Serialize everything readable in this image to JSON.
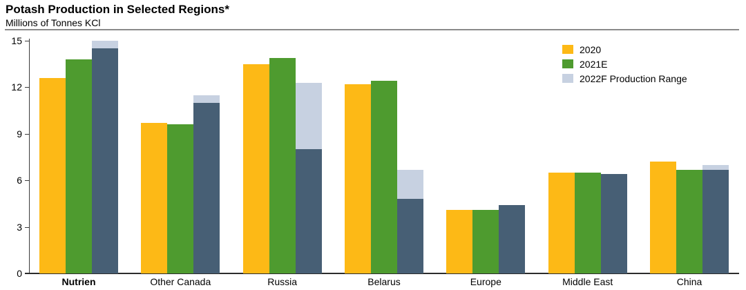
{
  "header": {
    "title": "Potash Production in Selected Regions*",
    "subtitle": "Millions of Tonnes KCl"
  },
  "colors": {
    "gold": "#FDB916",
    "green": "#4E9B2F",
    "slate": "#475F75",
    "light_blue": "#C7D1E1",
    "axis": "#2b2b2b",
    "rule": "#8a8a8a"
  },
  "legend": [
    {
      "label": "2020",
      "color": "#FDB916"
    },
    {
      "label": "2021E",
      "color": "#4E9B2F"
    },
    {
      "label": "2022F Production Range",
      "color": "#C7D1E1"
    }
  ],
  "chart_data": {
    "type": "bar",
    "title": "Potash Production in Selected Regions*",
    "ylabel": "Millions of Tonnes KCl",
    "ylim": [
      0,
      15
    ],
    "yticks": [
      0,
      3,
      6,
      9,
      12,
      15
    ],
    "grid": false,
    "legend_position": "top-right",
    "categories": [
      "Nutrien",
      "Other Canada",
      "Russia",
      "Belarus",
      "Europe",
      "Middle East",
      "China"
    ],
    "emphasized_category": "Nutrien",
    "series": [
      {
        "name": "2020",
        "color": "#FDB916",
        "values": [
          12.6,
          9.7,
          13.5,
          12.2,
          4.1,
          6.5,
          7.2
        ]
      },
      {
        "name": "2021E",
        "color": "#4E9B2F",
        "values": [
          13.8,
          9.6,
          13.9,
          12.4,
          4.1,
          6.5,
          6.7
        ]
      },
      {
        "name": "2022F Production Range",
        "color_low": "#475F75",
        "color_range": "#C7D1E1",
        "range_low": [
          14.5,
          11.0,
          8.0,
          4.8,
          4.4,
          6.4,
          6.7
        ],
        "range_high": [
          15.0,
          11.5,
          12.3,
          6.7,
          4.4,
          6.4,
          7.0
        ]
      }
    ]
  }
}
